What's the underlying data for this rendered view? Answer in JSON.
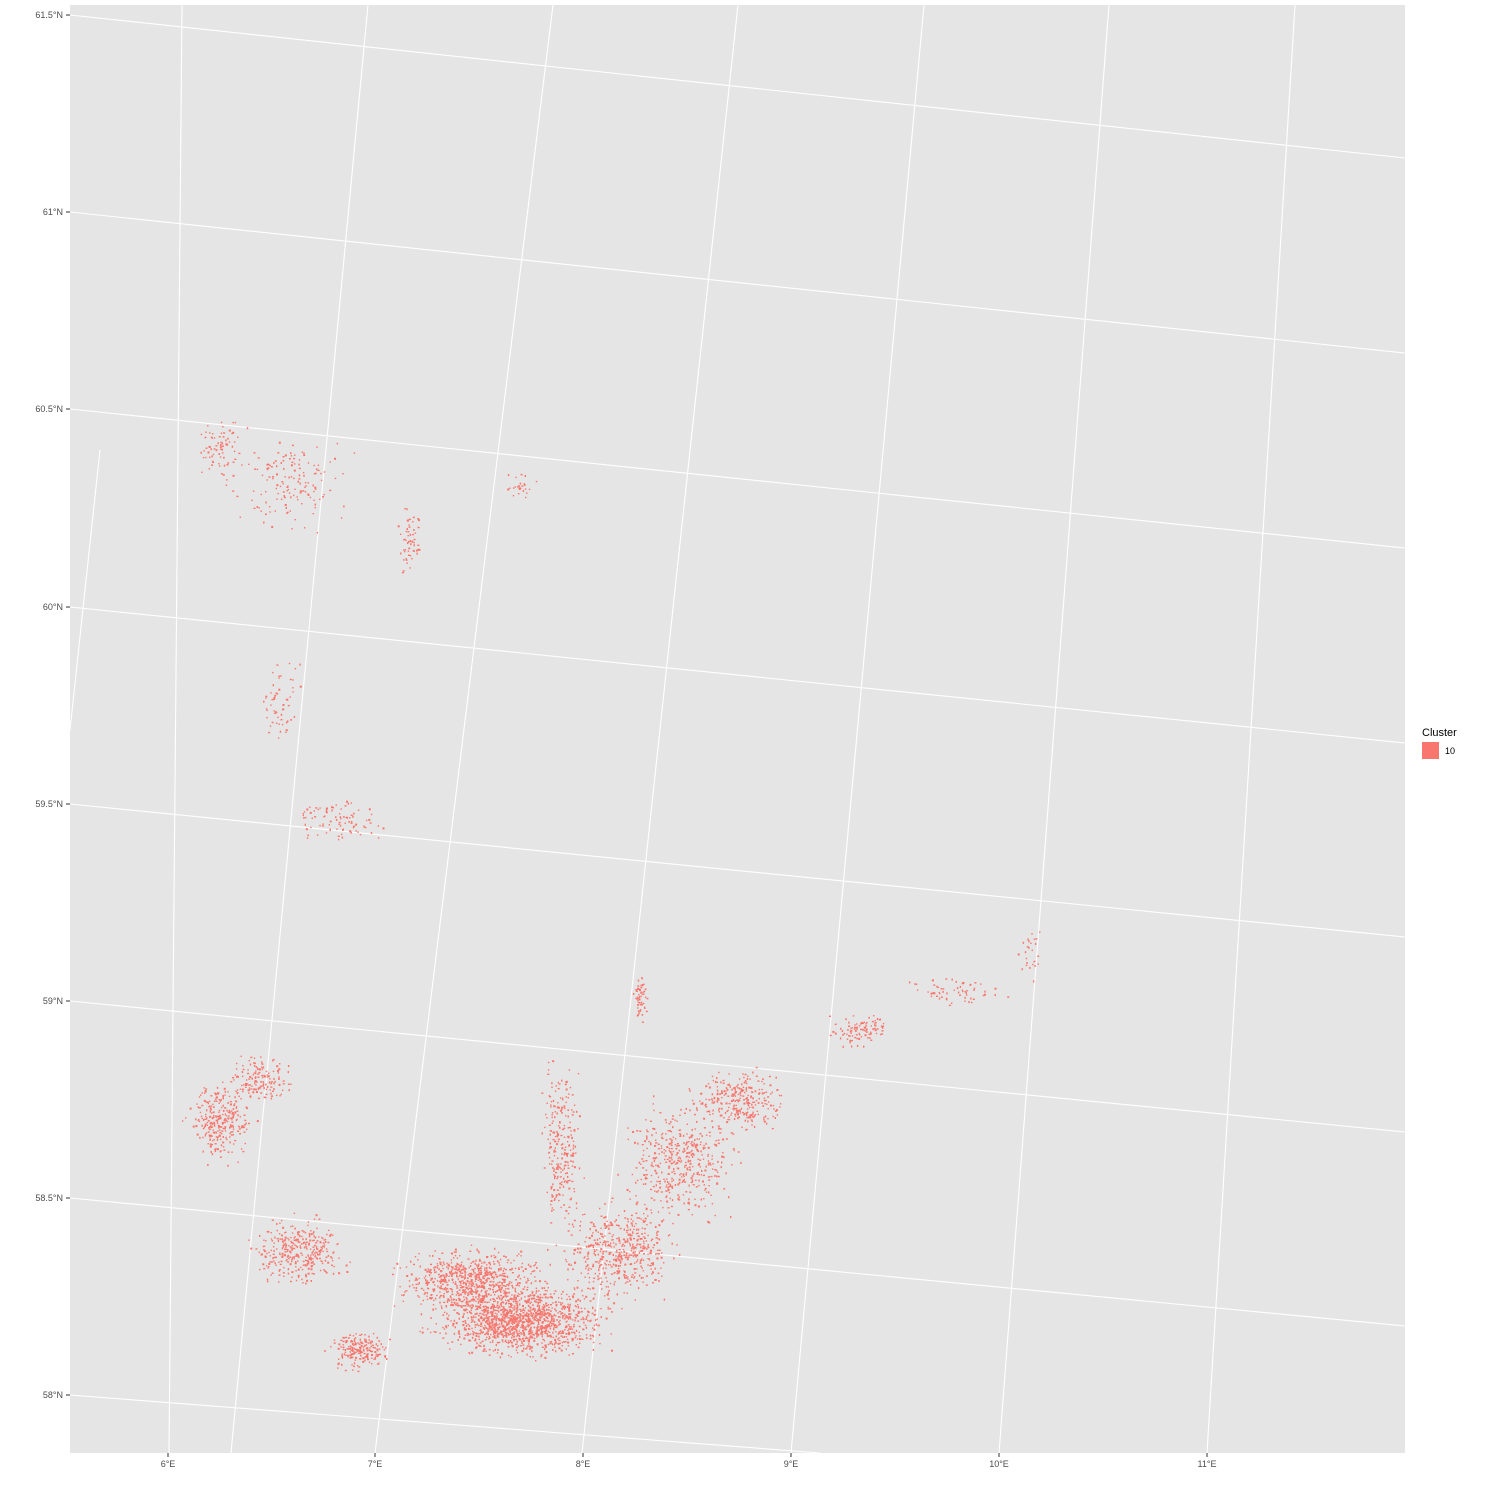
{
  "map": {
    "y_axis_labels": [
      "61.5°N",
      "61°N",
      "60.5°N",
      "60°N",
      "59.5°N",
      "59°N",
      "58.5°N",
      "58°N"
    ],
    "x_axis_labels": [
      "6°E",
      "7°E",
      "8°E",
      "9°E",
      "10°E",
      "11°E"
    ],
    "latitudes": [
      61.5,
      61,
      60.5,
      60,
      59.5,
      59,
      58.5,
      58
    ],
    "longitudes": [
      6,
      7,
      8,
      9,
      10,
      11
    ],
    "panel_background": "#e5e5e5",
    "gridline_color": "#ffffff"
  },
  "legend": {
    "title": "Cluster",
    "items": [
      {
        "label": "10",
        "color": "#f8766d"
      }
    ]
  }
}
